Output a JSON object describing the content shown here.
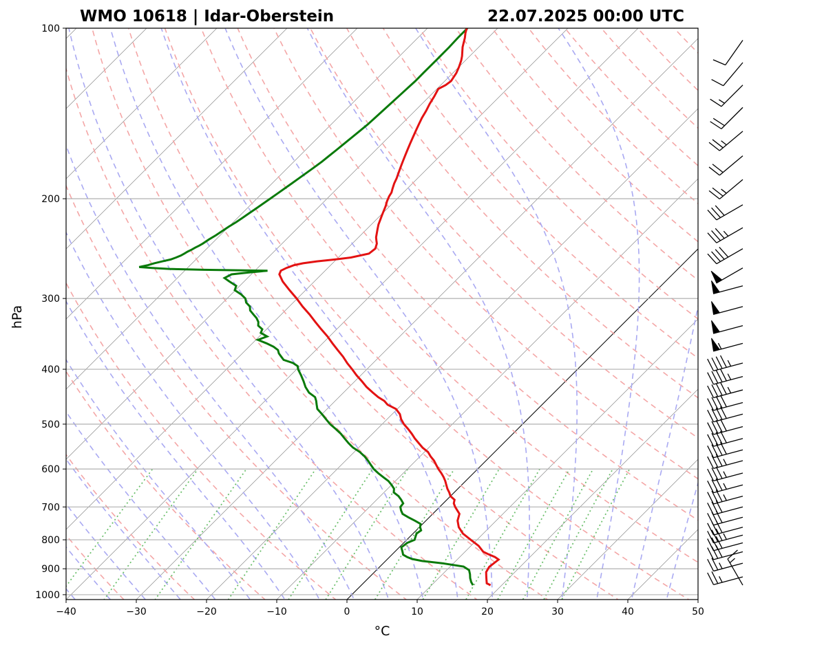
{
  "header": {
    "left_title": "WMO 10618 | Idar-Oberstein",
    "right_title": "22.07.2025 00:00 UTC"
  },
  "chart_data": {
    "type": "skew-t log-p",
    "xlabel": "°C",
    "ylabel": "hPa",
    "xlim": [
      -40,
      50
    ],
    "ylim": [
      1020,
      100
    ],
    "x_ticks": [
      -40,
      -30,
      -20,
      -10,
      0,
      10,
      20,
      30,
      40,
      50
    ],
    "x_tick_labels": [
      "−40",
      "−30",
      "−20",
      "−10",
      "0",
      "10",
      "20",
      "30",
      "40",
      "50"
    ],
    "y_ticks": [
      1000,
      900,
      800,
      700,
      600,
      500,
      400,
      300,
      200,
      100
    ],
    "y_tick_labels": [
      "1000",
      "900",
      "800",
      "700",
      "600",
      "500",
      "400",
      "300",
      "200",
      "100"
    ],
    "grid": true,
    "colors": {
      "temperature": "#e31212",
      "dewpoint": "#0a7a0a",
      "dry_adiabats": "#f4a6a6",
      "moist_adiabats": "#a9a9f2",
      "mixing_ratio": "#6cbf6c",
      "isotherms": "#8c8c8c",
      "zero_isotherm": "#000000"
    },
    "series": [
      {
        "role": "temperature",
        "p": [
          962,
          955,
          945,
          930,
          912,
          893,
          876,
          867,
          858,
          850,
          840,
          820,
          800,
          780,
          760,
          740,
          720,
          700,
          690,
          680,
          670,
          660,
          650,
          640,
          630,
          620,
          610,
          600,
          590,
          580,
          570,
          560,
          550,
          540,
          530,
          520,
          510,
          500,
          490,
          480,
          470,
          462,
          455,
          448,
          440,
          430,
          420,
          410,
          400,
          390,
          380,
          370,
          360,
          350,
          340,
          330,
          320,
          310,
          300,
          290,
          280,
          272,
          268,
          265,
          262,
          260,
          258,
          256,
          254,
          250,
          245,
          240,
          237,
          234,
          230,
          226,
          222,
          218,
          214,
          210,
          206,
          202,
          198,
          195,
          192,
          188,
          184,
          180,
          176,
          172,
          168,
          164,
          160,
          156,
          152,
          148,
          144,
          140,
          136,
          132,
          128,
          126,
          124,
          122,
          120,
          117,
          114,
          112,
          110,
          108,
          106,
          104,
          102,
          100
        ],
        "t": [
          18.4,
          17.6,
          17.2,
          16.6,
          15.9,
          15.6,
          15.8,
          15.9,
          15.0,
          13.9,
          12.6,
          11.1,
          9.1,
          7.1,
          5.6,
          4.5,
          3.8,
          2.2,
          1.5,
          1.1,
          0.0,
          -0.7,
          -1.5,
          -2.2,
          -2.9,
          -3.7,
          -4.6,
          -5.6,
          -6.5,
          -7.4,
          -8.5,
          -9.5,
          -10.9,
          -12.1,
          -13.3,
          -14.4,
          -15.6,
          -16.9,
          -18.0,
          -18.9,
          -20.2,
          -22.0,
          -23.0,
          -24.4,
          -25.8,
          -27.5,
          -29.0,
          -30.6,
          -32.1,
          -33.7,
          -35.2,
          -36.9,
          -38.6,
          -40.3,
          -42.2,
          -44.1,
          -46.0,
          -48.1,
          -50.1,
          -52.3,
          -54.5,
          -56.0,
          -56.3,
          -55.9,
          -55.2,
          -54.2,
          -52.5,
          -50.2,
          -48.2,
          -46.2,
          -46.0,
          -46.5,
          -47.0,
          -47.5,
          -48.0,
          -48.5,
          -49.0,
          -49.4,
          -49.8,
          -50.2,
          -50.6,
          -51.1,
          -51.5,
          -51.7,
          -52.1,
          -52.6,
          -53.0,
          -53.5,
          -54.0,
          -54.5,
          -55.0,
          -55.5,
          -56.0,
          -56.5,
          -57.0,
          -57.5,
          -58.0,
          -58.4,
          -58.9,
          -59.3,
          -59.8,
          -59.3,
          -59.1,
          -59.3,
          -59.5,
          -60.0,
          -60.6,
          -61.1,
          -61.7,
          -62.3,
          -62.8,
          -63.3,
          -63.9,
          -64.4
        ]
      },
      {
        "role": "dewpoint",
        "p": [
          962,
          950,
          935,
          920,
          905,
          892,
          880,
          872,
          865,
          858,
          850,
          840,
          825,
          810,
          800,
          790,
          780,
          770,
          760,
          750,
          740,
          730,
          720,
          710,
          700,
          690,
          680,
          670,
          660,
          650,
          640,
          630,
          620,
          610,
          600,
          590,
          580,
          570,
          560,
          550,
          540,
          530,
          520,
          510,
          500,
          490,
          480,
          470,
          462,
          455,
          448,
          440,
          430,
          420,
          410,
          400,
          395,
          390,
          385,
          380,
          375,
          370,
          365,
          360,
          355,
          350,
          345,
          340,
          335,
          330,
          325,
          320,
          315,
          310,
          305,
          300,
          295,
          290,
          285,
          280,
          276,
          272,
          270,
          268,
          267,
          266,
          265,
          264,
          263,
          262,
          260,
          258,
          256,
          254,
          252,
          250,
          248,
          246,
          244,
          242,
          240,
          236,
          232,
          228,
          224,
          220,
          216,
          212,
          208,
          204,
          200,
          196,
          192,
          188,
          184,
          180,
          176,
          172,
          168,
          164,
          160,
          156,
          152,
          148,
          144,
          140,
          136,
          132,
          128,
          124,
          120,
          116,
          112,
          108,
          104,
          100
        ],
        "td": [
          15.9,
          15.2,
          14.5,
          13.9,
          13.2,
          11.9,
          8.4,
          5.2,
          3.5,
          2.5,
          1.6,
          1.1,
          0.3,
          0.5,
          1.1,
          0.8,
          0.5,
          0.7,
          0.1,
          -0.3,
          -1.6,
          -3.0,
          -4.3,
          -5.0,
          -5.6,
          -5.7,
          -6.5,
          -7.4,
          -8.6,
          -9.1,
          -10.0,
          -11.0,
          -12.3,
          -13.6,
          -14.8,
          -15.8,
          -16.8,
          -17.9,
          -19.2,
          -20.8,
          -22.1,
          -23.3,
          -24.5,
          -25.9,
          -27.4,
          -28.7,
          -30.0,
          -31.4,
          -32.1,
          -32.7,
          -33.4,
          -34.9,
          -36.2,
          -37.3,
          -38.5,
          -39.8,
          -40.3,
          -41.4,
          -43.2,
          -44.0,
          -44.8,
          -45.4,
          -46.5,
          -48.0,
          -49.7,
          -48.9,
          -50.3,
          -50.6,
          -51.7,
          -52.2,
          -53.0,
          -54.0,
          -55.0,
          -55.6,
          -56.7,
          -57.4,
          -58.6,
          -60.1,
          -60.5,
          -62.1,
          -63.3,
          -62.8,
          -60.7,
          -58.2,
          -67.4,
          -72.5,
          -75.0,
          -77.0,
          -76.5,
          -76.0,
          -75.4,
          -74.5,
          -73.6,
          -73.1,
          -72.7,
          -72.5,
          -72.3,
          -72.0,
          -71.8,
          -71.5,
          -71.3,
          -71.0,
          -70.6,
          -70.3,
          -70.0,
          -69.6,
          -69.3,
          -69.0,
          -68.7,
          -68.4,
          -68.1,
          -67.8,
          -67.5,
          -67.2,
          -66.9,
          -66.6,
          -66.3,
          -66.0,
          -65.8,
          -65.6,
          -65.4,
          -65.2,
          -65.0,
          -64.8,
          -64.7,
          -64.6,
          -64.5,
          -64.4,
          -64.3,
          -64.2,
          -64.2,
          -64.2,
          -64.2,
          -64.2,
          -64.3,
          -64.3
        ]
      }
    ],
    "wind_barbs": {
      "units": "kt",
      "p": [
        962,
        930,
        880,
        840,
        810,
        785,
        760,
        730,
        700,
        670,
        640,
        610,
        580,
        555,
        530,
        505,
        480,
        458,
        435,
        412,
        390,
        360,
        335,
        310,
        285,
        265,
        245,
        225,
        205,
        185,
        168,
        152,
        138,
        126,
        115,
        105
      ],
      "direction_deg": [
        330,
        255,
        255,
        255,
        255,
        255,
        255,
        255,
        255,
        255,
        255,
        255,
        255,
        255,
        255,
        255,
        255,
        255,
        255,
        255,
        255,
        255,
        255,
        255,
        255,
        240,
        240,
        240,
        240,
        230,
        230,
        230,
        225,
        225,
        220,
        215
      ],
      "speed_kt": [
        15,
        25,
        25,
        30,
        30,
        35,
        30,
        30,
        30,
        35,
        35,
        35,
        35,
        40,
        40,
        40,
        40,
        40,
        45,
        45,
        45,
        55,
        50,
        50,
        50,
        50,
        40,
        35,
        30,
        25,
        20,
        25,
        20,
        15,
        10,
        10
      ]
    }
  }
}
